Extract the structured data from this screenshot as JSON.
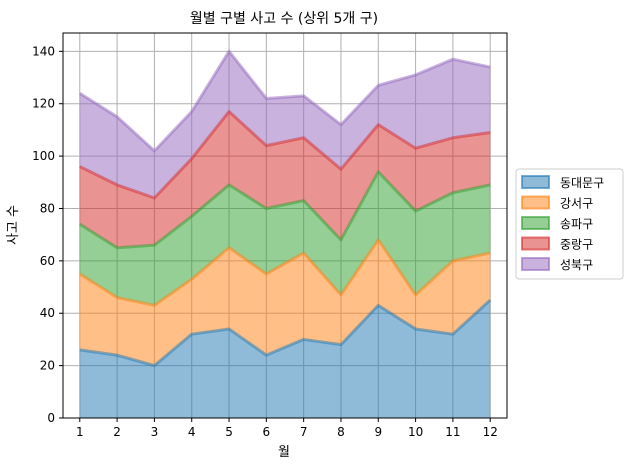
{
  "chart_data": {
    "type": "area",
    "stacked": true,
    "title": "월별 구별 사고 수 (상위 5개 구)",
    "xlabel": "월",
    "ylabel": "사고 수",
    "x": [
      1,
      2,
      3,
      4,
      5,
      6,
      7,
      8,
      9,
      10,
      11,
      12
    ],
    "xlim": [
      0.55,
      12.45
    ],
    "ylim": [
      0,
      147
    ],
    "yticks": [
      0,
      20,
      40,
      60,
      80,
      100,
      120,
      140
    ],
    "grid": true,
    "legend_position": "right",
    "series": [
      {
        "name": "동대문구",
        "color": "#1f77b4",
        "values": [
          26,
          24,
          20,
          32,
          34,
          24,
          30,
          28,
          43,
          34,
          32,
          45
        ]
      },
      {
        "name": "강서구",
        "color": "#ff7f0e",
        "values": [
          29,
          22,
          23,
          21,
          31,
          31,
          33,
          19,
          25,
          13,
          28,
          18
        ]
      },
      {
        "name": "송파구",
        "color": "#2ca02c",
        "values": [
          19,
          19,
          23,
          24,
          24,
          25,
          20,
          21,
          26,
          32,
          26,
          26
        ]
      },
      {
        "name": "중랑구",
        "color": "#d62728",
        "values": [
          22,
          24,
          18,
          22,
          28,
          24,
          24,
          27,
          18,
          24,
          21,
          20
        ]
      },
      {
        "name": "성북구",
        "color": "#9467bd",
        "values": [
          28,
          26,
          18,
          18,
          23,
          18,
          16,
          17,
          15,
          28,
          30,
          25
        ]
      }
    ]
  }
}
